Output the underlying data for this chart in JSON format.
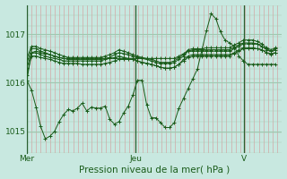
{
  "xlabel": "Pression niveau de la mer( hPa )",
  "bg_color": "#c8e8e0",
  "plot_bg_color": "#c8e8e0",
  "grid_v_color": "#c0c8c0",
  "grid_v_minor_color": "#d8b8b8",
  "line_color": "#1a5c1a",
  "ylim": [
    1014.55,
    1017.6
  ],
  "yticks": [
    1015,
    1016,
    1017
  ],
  "xlim_days": 2.35,
  "day_labels": [
    "Mer",
    "Jeu",
    "V"
  ],
  "day_positions": [
    0.0,
    1.0,
    2.0
  ],
  "n_per_day": 24,
  "series": [
    [
      1016.05,
      1016.62,
      1016.65,
      1016.62,
      1016.6,
      1016.58,
      1016.55,
      1016.52,
      1016.5,
      1016.5,
      1016.5,
      1016.5,
      1016.5,
      1016.5,
      1016.5,
      1016.5,
      1016.5,
      1016.5,
      1016.5,
      1016.5,
      1016.5,
      1016.5,
      1016.5,
      1016.5,
      1016.5,
      1016.5,
      1016.5,
      1016.5,
      1016.5,
      1016.5,
      1016.5,
      1016.5,
      1016.5,
      1016.55,
      1016.6,
      1016.65,
      1016.65,
      1016.65,
      1016.65,
      1016.65,
      1016.65,
      1016.65,
      1016.65,
      1016.65,
      1016.65,
      1016.7,
      1016.75,
      1016.8,
      1016.8,
      1016.8,
      1016.8,
      1016.75,
      1016.7,
      1016.65,
      1016.7
    ],
    [
      1016.15,
      1016.55,
      1016.55,
      1016.52,
      1016.5,
      1016.48,
      1016.45,
      1016.42,
      1016.4,
      1016.4,
      1016.4,
      1016.4,
      1016.38,
      1016.38,
      1016.38,
      1016.38,
      1016.38,
      1016.4,
      1016.42,
      1016.45,
      1016.48,
      1016.48,
      1016.48,
      1016.48,
      1016.45,
      1016.42,
      1016.4,
      1016.38,
      1016.35,
      1016.32,
      1016.3,
      1016.3,
      1016.32,
      1016.38,
      1016.45,
      1016.52,
      1016.55,
      1016.55,
      1016.55,
      1016.55,
      1016.55,
      1016.55,
      1016.55,
      1016.55,
      1016.55,
      1016.6,
      1016.65,
      1016.7,
      1016.7,
      1016.7,
      1016.7,
      1016.68,
      1016.62,
      1016.58,
      1016.62
    ],
    [
      1016.3,
      1016.62,
      1016.62,
      1016.58,
      1016.55,
      1016.52,
      1016.5,
      1016.48,
      1016.45,
      1016.45,
      1016.45,
      1016.45,
      1016.45,
      1016.45,
      1016.45,
      1016.45,
      1016.45,
      1016.48,
      1016.5,
      1016.52,
      1016.55,
      1016.52,
      1016.5,
      1016.48,
      1016.45,
      1016.42,
      1016.4,
      1016.38,
      1016.35,
      1016.32,
      1016.3,
      1016.3,
      1016.32,
      1016.38,
      1016.48,
      1016.55,
      1016.58,
      1016.58,
      1016.58,
      1016.58,
      1016.58,
      1016.58,
      1016.58,
      1016.58,
      1016.58,
      1016.62,
      1016.68,
      1016.72,
      1016.72,
      1016.72,
      1016.7,
      1016.68,
      1016.62,
      1016.6,
      1016.62
    ],
    [
      1016.4,
      1016.7,
      1016.7,
      1016.65,
      1016.62,
      1016.58,
      1016.55,
      1016.52,
      1016.5,
      1016.48,
      1016.48,
      1016.48,
      1016.48,
      1016.48,
      1016.48,
      1016.48,
      1016.48,
      1016.5,
      1016.52,
      1016.58,
      1016.62,
      1016.6,
      1016.58,
      1016.55,
      1016.52,
      1016.5,
      1016.48,
      1016.45,
      1016.42,
      1016.4,
      1016.4,
      1016.4,
      1016.42,
      1016.48,
      1016.55,
      1016.65,
      1016.68,
      1016.68,
      1016.68,
      1016.68,
      1016.68,
      1016.68,
      1016.68,
      1016.68,
      1016.68,
      1016.72,
      1016.78,
      1016.82,
      1016.82,
      1016.82,
      1016.8,
      1016.75,
      1016.68,
      1016.65,
      1016.68
    ],
    [
      1016.5,
      1016.75,
      1016.75,
      1016.7,
      1016.68,
      1016.65,
      1016.62,
      1016.58,
      1016.55,
      1016.52,
      1016.52,
      1016.52,
      1016.52,
      1016.52,
      1016.52,
      1016.52,
      1016.52,
      1016.55,
      1016.58,
      1016.62,
      1016.68,
      1016.65,
      1016.62,
      1016.58,
      1016.55,
      1016.52,
      1016.5,
      1016.48,
      1016.45,
      1016.42,
      1016.42,
      1016.42,
      1016.45,
      1016.52,
      1016.58,
      1016.68,
      1016.7,
      1016.7,
      1016.7,
      1016.72,
      1016.72,
      1016.72,
      1016.72,
      1016.72,
      1016.72,
      1016.78,
      1016.82,
      1016.88,
      1016.88,
      1016.88,
      1016.85,
      1016.8,
      1016.72,
      1016.68,
      1016.72
    ],
    [
      1016.05,
      1015.85,
      1015.5,
      1015.1,
      1014.85,
      1014.9,
      1015.0,
      1015.2,
      1015.35,
      1015.45,
      1015.42,
      1015.48,
      1015.58,
      1015.42,
      1015.5,
      1015.48,
      1015.48,
      1015.52,
      1015.25,
      1015.15,
      1015.2,
      1015.38,
      1015.52,
      1015.75,
      1016.05,
      1016.05,
      1015.55,
      1015.28,
      1015.28,
      1015.18,
      1015.08,
      1015.08,
      1015.18,
      1015.48,
      1015.68,
      1015.88,
      1016.08,
      1016.28,
      1016.68,
      1017.08,
      1017.42,
      1017.32,
      1017.05,
      1016.88,
      1016.82,
      1016.75,
      1016.55,
      1016.45,
      1016.38,
      1016.38,
      1016.38,
      1016.38,
      1016.38,
      1016.38,
      1016.38
    ]
  ]
}
